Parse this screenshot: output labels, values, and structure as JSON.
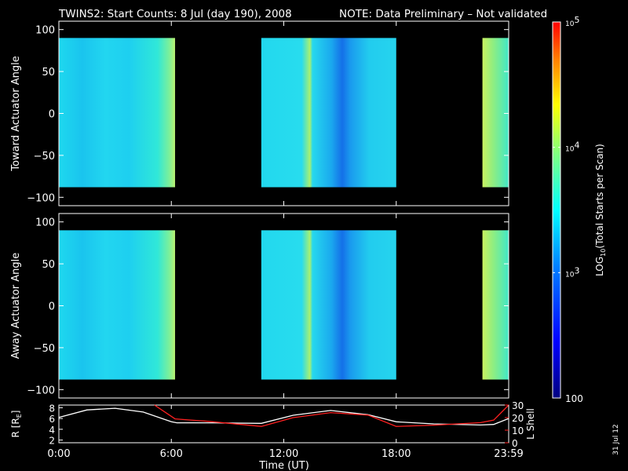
{
  "title": {
    "main": "TWINS2: Start Counts:  8 Jul (day 190), 2008",
    "note": "NOTE: Data Preliminary – Not validated",
    "note_color": "#ff2020"
  },
  "stamp": "31 Jul 12",
  "colors": {
    "background": "#000000",
    "axis": "#ffffff",
    "r_line": "#ffffff",
    "lshell_line": "#ff2020"
  },
  "chart_data": [
    {
      "type": "heatmap",
      "panel": "toward",
      "ylabel": "Toward Actuator Angle",
      "ylim": [
        -110,
        110
      ],
      "yticks": [
        "100",
        "50",
        "0",
        "−50",
        "−100"
      ],
      "ytick_values": [
        100,
        50,
        0,
        -50,
        -100
      ],
      "xlim_hours": [
        0,
        24
      ],
      "data_angle_range": [
        -88,
        90
      ],
      "data_segments_hours": [
        [
          0,
          6.2
        ],
        [
          10.8,
          18.0
        ],
        [
          22.6,
          24
        ]
      ]
    },
    {
      "type": "heatmap",
      "panel": "away",
      "ylabel": "Away Actuator Angle",
      "ylim": [
        -110,
        110
      ],
      "yticks": [
        "100",
        "50",
        "0",
        "−50",
        "−100"
      ],
      "ytick_values": [
        100,
        50,
        0,
        -50,
        -100
      ],
      "xlim_hours": [
        0,
        24
      ],
      "data_angle_range": [
        -88,
        90
      ],
      "data_segments_hours": [
        [
          0,
          6.2
        ],
        [
          10.8,
          18.0
        ],
        [
          22.6,
          24
        ]
      ]
    },
    {
      "type": "line",
      "panel": "orbit",
      "xlabel": "Time (UT)",
      "xticks": [
        "0:00",
        "6:00",
        "12:00",
        "18:00",
        "23:59"
      ],
      "xtick_hours": [
        0,
        6,
        12,
        18,
        24
      ],
      "ylabel_left": "R [R",
      "ylabel_left_sub": "E",
      "ylabel_left_end": "]",
      "ylim_left": [
        1.5,
        8.5
      ],
      "yticks_left": [
        "8",
        "6",
        "4",
        "2"
      ],
      "ytick_left_values": [
        8,
        6,
        4,
        2
      ],
      "ylabel_right": "L Shell",
      "ylim_right": [
        0,
        30
      ],
      "yticks_right": [
        "30",
        "20",
        "10",
        "0"
      ],
      "ytick_right_values": [
        30,
        20,
        10,
        0
      ],
      "series": [
        {
          "axis": "left",
          "x": [
            0,
            1.5,
            3,
            4.5,
            6,
            6.3,
            8,
            10.8,
            12.5,
            14.5,
            16.5,
            18,
            20,
            22.5,
            23.2,
            24
          ],
          "y": [
            6.2,
            7.6,
            7.9,
            7.2,
            5.4,
            5.2,
            5.2,
            5.1,
            6.6,
            7.5,
            6.7,
            5.4,
            5.0,
            4.8,
            4.9,
            6.0
          ]
        },
        {
          "axis": "right",
          "x": [
            5.1,
            6.2,
            8,
            10.8,
            12.5,
            14.5,
            16.5,
            18,
            20,
            22.5,
            23.2,
            24
          ],
          "y": [
            30,
            19,
            17,
            13,
            20,
            24,
            22,
            13,
            14,
            16,
            18,
            30
          ]
        }
      ]
    },
    {
      "type": "colorbar",
      "label_pre": "LOG",
      "label_sub": "10",
      "label_post": "(Total Starts per Scan)",
      "scale": "log",
      "range": [
        100,
        100000
      ],
      "ticks": [
        {
          "base": "10",
          "exp": "5",
          "value": 100000
        },
        {
          "base": "10",
          "exp": "4",
          "value": 10000
        },
        {
          "base": "10",
          "exp": "3",
          "value": 1000
        },
        {
          "plain": "100",
          "value": 100
        }
      ]
    }
  ]
}
